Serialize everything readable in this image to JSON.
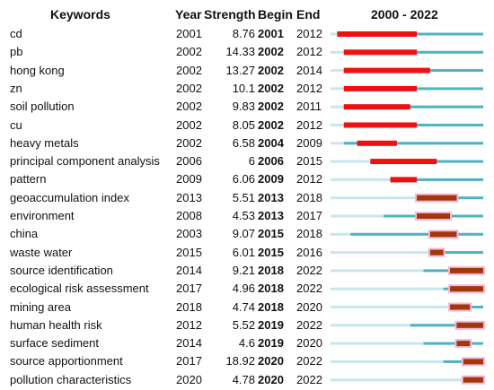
{
  "headers": {
    "keywords": "Keywords",
    "year": "Year",
    "strength": "Strength",
    "begin": "Begin",
    "end": "End",
    "timeline": "2000 - 2022"
  },
  "chart_data": {
    "type": "table",
    "timeline_start": 2000,
    "timeline_end": 2022,
    "colors": {
      "burst": "#ee1111",
      "burst_dark": "#a03808",
      "active": "#4fb3c4",
      "inactive": "#c9e6ec",
      "highlight": "#f4b6dc"
    },
    "rows": [
      {
        "keyword": "cd",
        "year": "2001",
        "strength": "8.76",
        "begin": "2001",
        "end": "2012"
      },
      {
        "keyword": "pb",
        "year": "2002",
        "strength": "14.33",
        "begin": "2002",
        "end": "2012"
      },
      {
        "keyword": "hong kong",
        "year": "2002",
        "strength": "13.27",
        "begin": "2002",
        "end": "2014"
      },
      {
        "keyword": "zn",
        "year": "2002",
        "strength": "10.1",
        "begin": "2002",
        "end": "2012"
      },
      {
        "keyword": "soil pollution",
        "year": "2002",
        "strength": "9.83",
        "begin": "2002",
        "end": "2011"
      },
      {
        "keyword": "cu",
        "year": "2002",
        "strength": "8.05",
        "begin": "2002",
        "end": "2012"
      },
      {
        "keyword": "heavy metals",
        "year": "2002",
        "strength": "6.58",
        "begin": "2004",
        "end": "2009"
      },
      {
        "keyword": "principal component analysis",
        "year": "2006",
        "strength": "6",
        "begin": "2006",
        "end": "2015"
      },
      {
        "keyword": "pattern",
        "year": "2009",
        "strength": "6.06",
        "begin": "2009",
        "end": "2012"
      },
      {
        "keyword": "geoaccumulation index",
        "year": "2013",
        "strength": "5.51",
        "begin": "2013",
        "end": "2018"
      },
      {
        "keyword": "environment",
        "year": "2008",
        "strength": "4.53",
        "begin": "2013",
        "end": "2017"
      },
      {
        "keyword": "china",
        "year": "2003",
        "strength": "9.07",
        "begin": "2015",
        "end": "2018"
      },
      {
        "keyword": "waste water",
        "year": "2015",
        "strength": "6.01",
        "begin": "2015",
        "end": "2016"
      },
      {
        "keyword": "source identification",
        "year": "2014",
        "strength": "9.21",
        "begin": "2018",
        "end": "2022"
      },
      {
        "keyword": "ecological risk assessment",
        "year": "2017",
        "strength": "4.96",
        "begin": "2018",
        "end": "2022"
      },
      {
        "keyword": "mining area",
        "year": "2018",
        "strength": "4.74",
        "begin": "2018",
        "end": "2020"
      },
      {
        "keyword": "human health risk",
        "year": "2012",
        "strength": "5.52",
        "begin": "2019",
        "end": "2022"
      },
      {
        "keyword": "surface sediment",
        "year": "2014",
        "strength": "4.6",
        "begin": "2019",
        "end": "2020"
      },
      {
        "keyword": "source apportionment",
        "year": "2017",
        "strength": "18.92",
        "begin": "2020",
        "end": "2022"
      },
      {
        "keyword": "pollution characteristics",
        "year": "2020",
        "strength": "4.78",
        "begin": "2020",
        "end": "2022"
      }
    ]
  }
}
